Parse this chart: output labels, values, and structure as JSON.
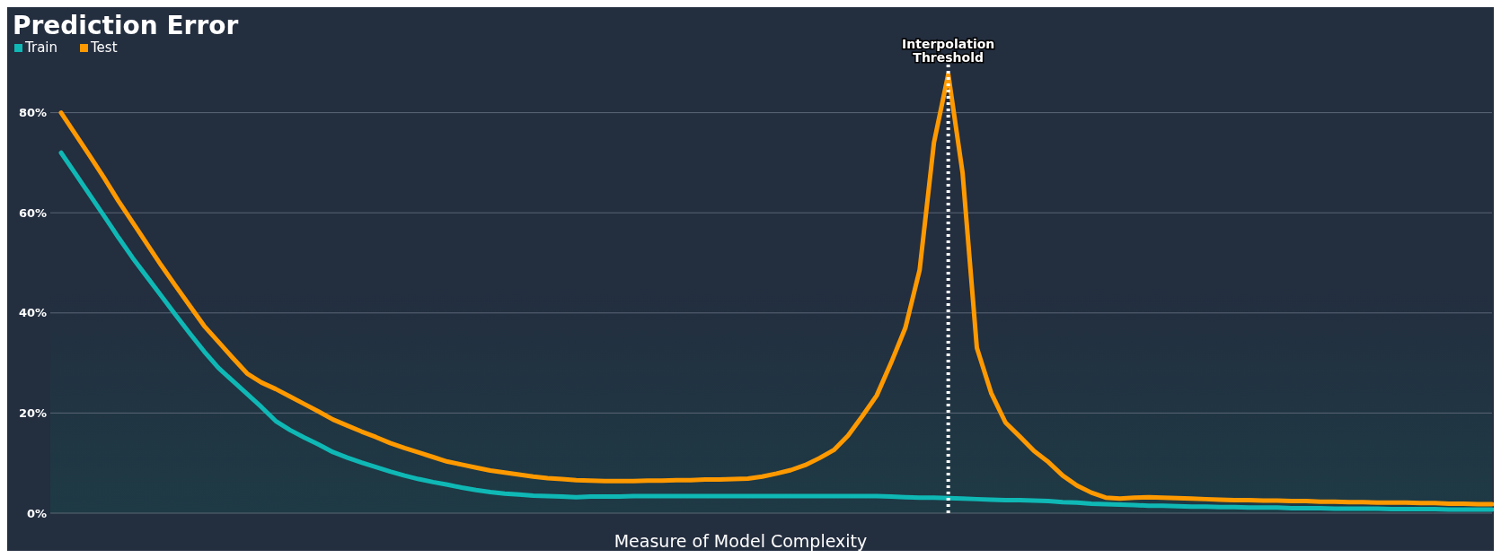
{
  "chart_data": {
    "type": "line",
    "title": "Prediction Error",
    "xlabel": "Measure of Model Complexity",
    "categories": [
      null,
      null,
      null,
      null,
      null,
      null,
      null,
      null,
      null,
      null,
      null,
      null,
      null,
      null,
      null,
      null,
      null,
      null,
      null,
      null,
      null,
      null,
      null,
      null,
      null,
      null,
      null,
      null,
      null,
      null,
      null,
      null,
      null,
      null,
      null,
      null,
      null,
      null,
      null,
      null,
      null,
      null,
      null,
      null,
      null,
      null,
      null,
      null,
      null,
      null,
      null,
      null,
      null,
      null,
      null,
      null,
      null,
      null,
      null,
      null,
      null,
      null,
      null,
      null,
      null,
      null,
      null,
      null,
      null,
      null,
      null,
      null,
      null,
      null,
      null,
      null,
      null,
      null,
      null,
      null,
      null,
      null,
      null,
      null,
      null,
      null,
      null,
      null,
      null,
      null,
      null,
      null,
      null,
      null,
      null,
      null,
      null,
      null,
      null,
      null,
      null
    ],
    "ylim": [
      0,
      100
    ],
    "yticks": [
      {
        "value": 0,
        "label": "0%"
      },
      {
        "value": 20,
        "label": "20%"
      },
      {
        "value": 40,
        "label": "40%"
      },
      {
        "value": 60,
        "label": "60%"
      },
      {
        "value": 80,
        "label": "80%"
      }
    ],
    "grid": "y",
    "legend": "top left",
    "marker": "none",
    "line_style": "solid",
    "annotations": [
      "Interpolation Threshold"
    ],
    "series": [
      {
        "name": "Train",
        "color": "#0fb8b5",
        "values": [
          72,
          67.8,
          63.6,
          59.4,
          55.1,
          51,
          47.2,
          43.4,
          39.6,
          35.9,
          32.3,
          29,
          26.4,
          23.8,
          21.2,
          18.4,
          16.6,
          15.1,
          13.7,
          12.2,
          11.1,
          10.1,
          9.2,
          8.3,
          7.5,
          6.8,
          6.2,
          5.7,
          5.1,
          4.6,
          4.2,
          3.9,
          3.7,
          3.5,
          3.4,
          3.3,
          3.2,
          3.3,
          3.3,
          3.3,
          3.4,
          3.4,
          3.4,
          3.4,
          3.4,
          3.4,
          3.4,
          3.4,
          3.4,
          3.4,
          3.4,
          3.4,
          3.4,
          3.4,
          3.4,
          3.4,
          3.4,
          3.4,
          3.3,
          3.2,
          3.1,
          3.1,
          3.0,
          2.9,
          2.8,
          2.7,
          2.6,
          2.6,
          2.5,
          2.4,
          2.2,
          2.1,
          1.9,
          1.8,
          1.7,
          1.6,
          1.5,
          1.5,
          1.4,
          1.3,
          1.3,
          1.2,
          1.2,
          1.1,
          1.1,
          1.1,
          1.0,
          1.0,
          1.0,
          0.9,
          0.9,
          0.9,
          0.9,
          0.8,
          0.8,
          0.8,
          0.8,
          0.7,
          0.7,
          0.7,
          0.7
        ]
      },
      {
        "name": "Test",
        "color": "#ff9900",
        "values": [
          80,
          75.7,
          71.4,
          67,
          62.4,
          58.1,
          53.8,
          49.5,
          45.4,
          41.4,
          37.4,
          34.2,
          31,
          27.9,
          26.1,
          24.8,
          23.3,
          21.8,
          20.3,
          18.7,
          17.5,
          16.3,
          15.2,
          14,
          13,
          12.1,
          11.2,
          10.3,
          9.7,
          9.1,
          8.5,
          8.1,
          7.7,
          7.3,
          7,
          6.8,
          6.6,
          6.5,
          6.4,
          6.4,
          6.4,
          6.5,
          6.5,
          6.6,
          6.6,
          6.7,
          6.7,
          6.8,
          6.9,
          7.3,
          7.9,
          8.6,
          9.6,
          11,
          12.6,
          15.5,
          19.4,
          23.5,
          30,
          37,
          48.6,
          74,
          87.7,
          68,
          33,
          24,
          18.1,
          15.3,
          12.4,
          10.2,
          7.5,
          5.5,
          4.1,
          3.1,
          2.9,
          3.1,
          3.2,
          3.1,
          3,
          2.9,
          2.8,
          2.7,
          2.6,
          2.6,
          2.5,
          2.5,
          2.4,
          2.4,
          2.3,
          2.3,
          2.2,
          2.2,
          2.1,
          2.1,
          2.1,
          2,
          2,
          1.9,
          1.9,
          1.8,
          1.8
        ]
      }
    ]
  }
}
